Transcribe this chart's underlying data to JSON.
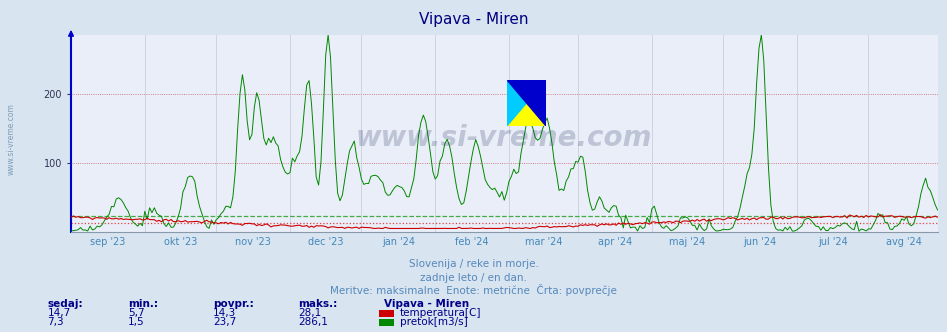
{
  "title": "Vipava - Miren",
  "title_color": "#000080",
  "bg_color": "#d8e4f0",
  "plot_bg_color": "#eaeef8",
  "grid_color_minor": "#c8d0e0",
  "grid_color_major_red": "#cc4444",
  "xlabel_color": "#4488bb",
  "watermark": "www.si-vreme.com",
  "watermark_color": "#1a3060",
  "subtitle1": "Slovenija / reke in morje.",
  "subtitle2": "zadnje leto / en dan.",
  "subtitle3": "Meritve: maksimalne  Enote: metrične  Črta: povprečje",
  "subtitle_color": "#5588bb",
  "ylim": [
    0,
    286
  ],
  "yticks": [
    100,
    200
  ],
  "xticklabels": [
    "sep '23",
    "okt '23",
    "nov '23",
    "dec '23",
    "jan '24",
    "feb '24",
    "mar '24",
    "apr '24",
    "maj '24",
    "jun '24",
    "jul '24",
    "avg '24"
  ],
  "temp_color": "#cc0000",
  "flow_color": "#008800",
  "temp_avg_color": "#dd4444",
  "flow_avg_color": "#44aa44",
  "temp_avg": 14.3,
  "flow_avg": 23.7,
  "legend_title": "Vipava - Miren",
  "legend_items": [
    {
      "label": "temperatura[C]",
      "color": "#cc0000"
    },
    {
      "label": "pretok[m3/s]",
      "color": "#008800"
    }
  ],
  "table_headers": [
    "sedaj:",
    "min.:",
    "povpr.:",
    "maks.:"
  ],
  "table_row1": [
    "14,7",
    "5,7",
    "14,3",
    "28,1"
  ],
  "table_row2": [
    "7,3",
    "1,5",
    "23,7",
    "286,1"
  ],
  "table_color": "#000088",
  "left_label": "www.si-vreme.com",
  "left_label_color": "#7090b0",
  "axis_left_color": "#0000cc",
  "logo_yellow": "#ffff00",
  "logo_cyan": "#00ccff",
  "logo_blue": "#0000cc"
}
